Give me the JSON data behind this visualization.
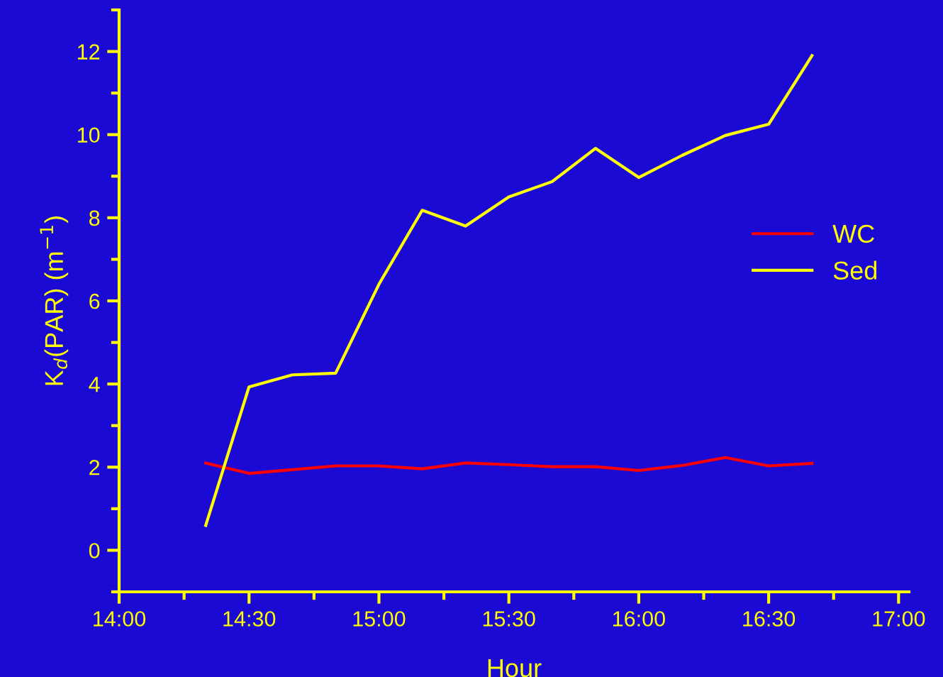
{
  "chart_data": {
    "type": "line",
    "xlabel": "Hour",
    "ylabel": "K$_{d}$(PAR) (m$^{−1}$)",
    "x": [
      14.3333,
      14.5,
      14.6667,
      14.8333,
      15,
      15.1667,
      15.3333,
      15.5,
      15.6667,
      15.8333,
      16,
      16.1667,
      16.3333,
      16.5,
      16.6667
    ],
    "series": [
      {
        "name": "WC",
        "color": "#ff0000",
        "values": [
          2.1,
          1.85,
          1.94,
          2.03,
          2.03,
          1.96,
          2.1,
          2.06,
          2.01,
          2.01,
          1.92,
          2.04,
          2.23,
          2.03,
          2.09
        ]
      },
      {
        "name": "Sed",
        "color": "#ffff00",
        "values": [
          0.6,
          3.93,
          4.22,
          4.26,
          6.4,
          8.18,
          7.8,
          8.5,
          8.87,
          9.67,
          8.97,
          9.5,
          9.98,
          10.25,
          11.9
        ]
      }
    ],
    "xlim": [
      14,
      17.04
    ],
    "ylim": [
      -1,
      13
    ],
    "xticks": [
      {
        "value": 14,
        "label": "14:00"
      },
      {
        "value": 14.25,
        "label": null
      },
      {
        "value": 14.5,
        "label": "14:30"
      },
      {
        "value": 14.75,
        "label": null
      },
      {
        "value": 15,
        "label": "15:00"
      },
      {
        "value": 15.25,
        "label": null
      },
      {
        "value": 15.5,
        "label": "15:30"
      },
      {
        "value": 15.75,
        "label": null
      },
      {
        "value": 16,
        "label": "16:00"
      },
      {
        "value": 16.25,
        "label": null
      },
      {
        "value": 16.5,
        "label": "16:30"
      },
      {
        "value": 16.75,
        "label": null
      },
      {
        "value": 17,
        "label": "17:00"
      }
    ],
    "yticks": [
      {
        "value": -1,
        "label": null
      },
      0,
      {
        "value": 1,
        "label": null
      },
      2,
      {
        "value": 3,
        "label": null
      },
      4,
      {
        "value": 5,
        "label": null
      },
      6,
      {
        "value": 7,
        "label": null
      },
      8,
      {
        "value": 9,
        "label": null
      },
      10,
      {
        "value": 11,
        "label": null
      },
      12,
      {
        "value": 13,
        "label": null
      }
    ],
    "grid": false,
    "legend": "right",
    "marker": "none",
    "line_style": "solid"
  }
}
